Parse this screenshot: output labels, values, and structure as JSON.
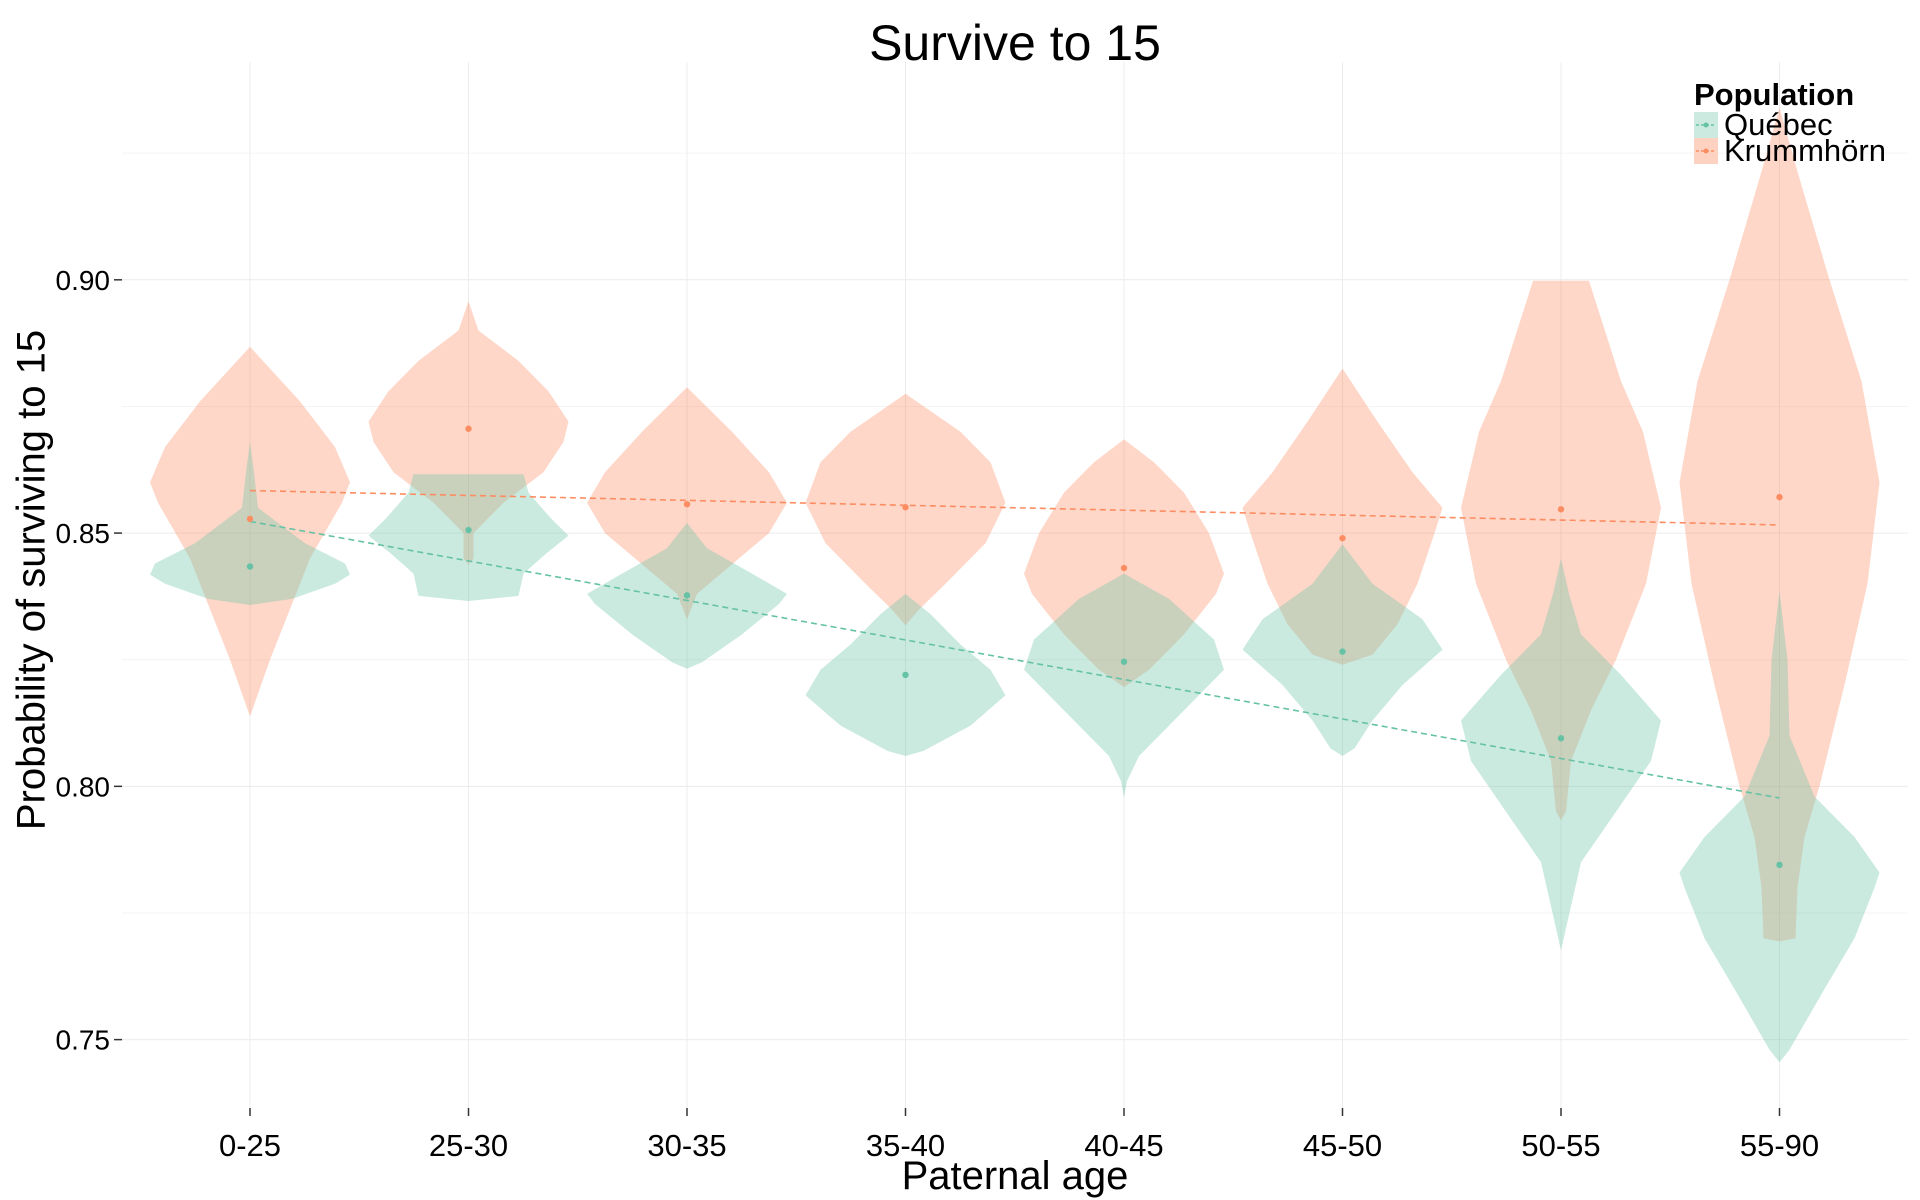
{
  "chart_data": {
    "type": "violin",
    "title": "Survive to 15",
    "xlabel": "Paternal age",
    "ylabel": "Probability of surviving to 15",
    "categories": [
      "0-25",
      "25-30",
      "30-35",
      "35-40",
      "40-45",
      "45-50",
      "50-55",
      "55-90"
    ],
    "yticks": [
      "0.75",
      "0.80",
      "0.85",
      "0.90"
    ],
    "ytick_values": [
      0.75,
      0.8,
      0.85,
      0.9
    ],
    "ylim": [
      0.7365,
      0.943
    ],
    "grid": true,
    "legend": {
      "title": "Population",
      "placement": "top-right"
    },
    "series": [
      {
        "name": "Québec",
        "color": "#66c2a5",
        "fill": "#cdeae0",
        "points": [
          0.8434,
          0.8506,
          0.8377,
          0.822,
          0.8246,
          0.8266,
          0.8095,
          0.7845
        ],
        "trend": [
          0.8523,
          0.7977
        ],
        "violins": [
          {
            "ymin": 0.8358,
            "ymax": 0.868,
            "profile": [
              [
                0.8358,
                0.0
              ],
              [
                0.837,
                0.42
              ],
              [
                0.84,
                0.85
              ],
              [
                0.8418,
                1.0
              ],
              [
                0.844,
                0.95
              ],
              [
                0.848,
                0.55
              ],
              [
                0.855,
                0.08
              ],
              [
                0.862,
                0.04
              ],
              [
                0.868,
                0.0
              ]
            ]
          },
          {
            "ymin": 0.8366,
            "ymax": 0.8616,
            "profile": [
              [
                0.8366,
                0.0
              ],
              [
                0.8376,
                0.5
              ],
              [
                0.842,
                0.55
              ],
              [
                0.846,
                0.78
              ],
              [
                0.8495,
                1.0
              ],
              [
                0.853,
                0.82
              ],
              [
                0.858,
                0.6
              ],
              [
                0.8616,
                0.55
              ]
            ]
          },
          {
            "ymin": 0.8232,
            "ymax": 0.852,
            "profile": [
              [
                0.8232,
                0.0
              ],
              [
                0.8245,
                0.15
              ],
              [
                0.83,
                0.55
              ],
              [
                0.836,
                0.92
              ],
              [
                0.838,
                1.0
              ],
              [
                0.842,
                0.65
              ],
              [
                0.847,
                0.2
              ],
              [
                0.852,
                0.0
              ]
            ]
          },
          {
            "ymin": 0.806,
            "ymax": 0.838,
            "profile": [
              [
                0.806,
                0.0
              ],
              [
                0.807,
                0.18
              ],
              [
                0.812,
                0.65
              ],
              [
                0.818,
                1.0
              ],
              [
                0.823,
                0.85
              ],
              [
                0.828,
                0.55
              ],
              [
                0.834,
                0.25
              ],
              [
                0.838,
                0.0
              ]
            ]
          },
          {
            "ymin": 0.7978,
            "ymax": 0.842,
            "profile": [
              [
                0.7978,
                0.0
              ],
              [
                0.801,
                0.03
              ],
              [
                0.806,
                0.15
              ],
              [
                0.815,
                0.6
              ],
              [
                0.823,
                1.0
              ],
              [
                0.829,
                0.9
              ],
              [
                0.837,
                0.45
              ],
              [
                0.842,
                0.0
              ]
            ]
          },
          {
            "ymin": 0.806,
            "ymax": 0.8478,
            "profile": [
              [
                0.806,
                0.0
              ],
              [
                0.8075,
                0.12
              ],
              [
                0.813,
                0.3
              ],
              [
                0.82,
                0.6
              ],
              [
                0.827,
                1.0
              ],
              [
                0.833,
                0.8
              ],
              [
                0.84,
                0.3
              ],
              [
                0.8478,
                0.0
              ]
            ]
          },
          {
            "ymin": 0.7676,
            "ymax": 0.845,
            "profile": [
              [
                0.7676,
                0.0
              ],
              [
                0.772,
                0.05
              ],
              [
                0.785,
                0.2
              ],
              [
                0.795,
                0.55
              ],
              [
                0.805,
                0.9
              ],
              [
                0.813,
                1.0
              ],
              [
                0.822,
                0.6
              ],
              [
                0.83,
                0.2
              ],
              [
                0.838,
                0.08
              ],
              [
                0.845,
                0.0
              ]
            ]
          },
          {
            "ymin": 0.7455,
            "ymax": 0.8385,
            "profile": [
              [
                0.7455,
                0.0
              ],
              [
                0.748,
                0.1
              ],
              [
                0.76,
                0.45
              ],
              [
                0.77,
                0.75
              ],
              [
                0.78,
                0.95
              ],
              [
                0.783,
                1.0
              ],
              [
                0.79,
                0.75
              ],
              [
                0.798,
                0.35
              ],
              [
                0.81,
                0.1
              ],
              [
                0.825,
                0.08
              ],
              [
                0.8385,
                0.0
              ]
            ]
          }
        ]
      },
      {
        "name": "Krummhörn",
        "color": "#fc8d62",
        "fill": "#fdd2c1",
        "points": [
          0.8528,
          0.8706,
          0.8557,
          0.8551,
          0.8431,
          0.849,
          0.8547,
          0.8571
        ],
        "trend": [
          0.8584,
          0.8516
        ],
        "violins": [
          {
            "ymin": 0.8138,
            "ymax": 0.8868,
            "profile": [
              [
                0.8138,
                0.0
              ],
              [
                0.825,
                0.2
              ],
              [
                0.835,
                0.4
              ],
              [
                0.845,
                0.6
              ],
              [
                0.856,
                0.92
              ],
              [
                0.86,
                1.0
              ],
              [
                0.867,
                0.85
              ],
              [
                0.876,
                0.5
              ],
              [
                0.8868,
                0.0
              ]
            ]
          },
          {
            "ymin": 0.8438,
            "ymax": 0.8958,
            "profile": [
              [
                0.8438,
                0.0
              ],
              [
                0.845,
                0.05
              ],
              [
                0.85,
                0.05
              ],
              [
                0.856,
                0.35
              ],
              [
                0.862,
                0.75
              ],
              [
                0.868,
                0.95
              ],
              [
                0.872,
                1.0
              ],
              [
                0.878,
                0.8
              ],
              [
                0.884,
                0.5
              ],
              [
                0.89,
                0.1
              ],
              [
                0.8958,
                0.0
              ]
            ]
          },
          {
            "ymin": 0.833,
            "ymax": 0.8788,
            "profile": [
              [
                0.833,
                0.0
              ],
              [
                0.838,
                0.1
              ],
              [
                0.843,
                0.4
              ],
              [
                0.85,
                0.82
              ],
              [
                0.856,
                1.0
              ],
              [
                0.862,
                0.82
              ],
              [
                0.87,
                0.45
              ],
              [
                0.8788,
                0.0
              ]
            ]
          },
          {
            "ymin": 0.8318,
            "ymax": 0.8775,
            "profile": [
              [
                0.8318,
                0.0
              ],
              [
                0.835,
                0.14
              ],
              [
                0.84,
                0.4
              ],
              [
                0.848,
                0.8
              ],
              [
                0.856,
                1.0
              ],
              [
                0.864,
                0.85
              ],
              [
                0.87,
                0.55
              ],
              [
                0.8775,
                0.0
              ]
            ]
          },
          {
            "ymin": 0.8196,
            "ymax": 0.8685,
            "profile": [
              [
                0.8196,
                0.0
              ],
              [
                0.823,
                0.25
              ],
              [
                0.83,
                0.6
              ],
              [
                0.838,
                0.92
              ],
              [
                0.842,
                1.0
              ],
              [
                0.85,
                0.85
              ],
              [
                0.858,
                0.6
              ],
              [
                0.864,
                0.3
              ],
              [
                0.8685,
                0.0
              ]
            ]
          },
          {
            "ymin": 0.824,
            "ymax": 0.8825,
            "profile": [
              [
                0.824,
                0.0
              ],
              [
                0.826,
                0.3
              ],
              [
                0.832,
                0.55
              ],
              [
                0.84,
                0.75
              ],
              [
                0.85,
                0.92
              ],
              [
                0.855,
                1.0
              ],
              [
                0.862,
                0.7
              ],
              [
                0.872,
                0.35
              ],
              [
                0.8825,
                0.0
              ]
            ]
          },
          {
            "ymin": 0.7933,
            "ymax": 0.8998,
            "profile": [
              [
                0.7933,
                0.0
              ],
              [
                0.795,
                0.05
              ],
              [
                0.805,
                0.1
              ],
              [
                0.815,
                0.3
              ],
              [
                0.825,
                0.55
              ],
              [
                0.84,
                0.85
              ],
              [
                0.855,
                1.0
              ],
              [
                0.87,
                0.82
              ],
              [
                0.88,
                0.6
              ],
              [
                0.8998,
                0.28
              ]
            ]
          },
          {
            "ymin": 0.7694,
            "ymax": 0.934,
            "profile": [
              [
                0.7694,
                0.0
              ],
              [
                0.77,
                0.16
              ],
              [
                0.78,
                0.18
              ],
              [
                0.79,
                0.25
              ],
              [
                0.8,
                0.4
              ],
              [
                0.82,
                0.65
              ],
              [
                0.84,
                0.88
              ],
              [
                0.86,
                1.0
              ],
              [
                0.88,
                0.82
              ],
              [
                0.9,
                0.5
              ],
              [
                0.92,
                0.2
              ],
              [
                0.934,
                0.0
              ]
            ]
          }
        ]
      }
    ]
  }
}
